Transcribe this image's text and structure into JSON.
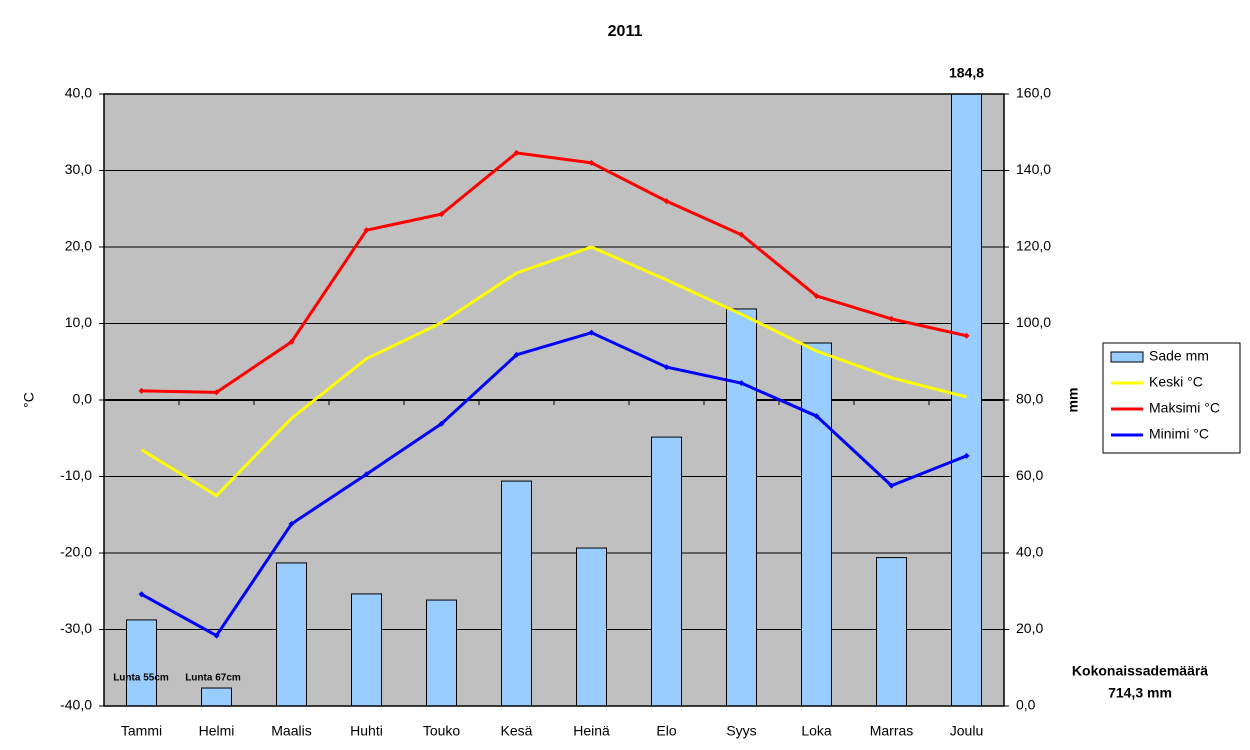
{
  "chart_data": {
    "type": "combo",
    "title": "2011",
    "ylabel": "°C",
    "y2label": "mm",
    "categories": [
      "Tammi",
      "Helmi",
      "Maalis",
      "Huhti",
      "Touko",
      "Kesä",
      "Heinä",
      "Elo",
      "Syys",
      "Loka",
      "Marras",
      "Joulu"
    ],
    "ylim": [
      -40,
      40
    ],
    "yticks": [
      {
        "value": -40,
        "label": "-40,0"
      },
      {
        "value": -30,
        "label": "-30,0"
      },
      {
        "value": -20,
        "label": "-20,0"
      },
      {
        "value": -10,
        "label": "-10,0"
      },
      {
        "value": 0,
        "label": "0,0"
      },
      {
        "value": 10,
        "label": "10,0"
      },
      {
        "value": 20,
        "label": "20,0"
      },
      {
        "value": 30,
        "label": "30,0"
      },
      {
        "value": 40,
        "label": "40,0"
      }
    ],
    "y2lim": [
      0,
      160
    ],
    "y2ticks": [
      {
        "value": 0,
        "label": "0,0"
      },
      {
        "value": 20,
        "label": "20,0"
      },
      {
        "value": 40,
        "label": "40,0"
      },
      {
        "value": 60,
        "label": "60,0"
      },
      {
        "value": 80,
        "label": "80,0"
      },
      {
        "value": 100,
        "label": "100,0"
      },
      {
        "value": 120,
        "label": "120,0"
      },
      {
        "value": 140,
        "label": "140,0"
      },
      {
        "value": 160,
        "label": "160,0"
      }
    ],
    "grid": true,
    "background": "#c0c0c0",
    "series": [
      {
        "name": "Sade mm",
        "type": "bar",
        "axis": "y2",
        "color": "#99ccff",
        "values": [
          22.5,
          4.7,
          37.4,
          29.3,
          27.7,
          58.8,
          41.3,
          70.3,
          103.8,
          94.9,
          38.8,
          184.8
        ],
        "value_labels": [
          null,
          null,
          null,
          null,
          null,
          null,
          null,
          null,
          null,
          null,
          null,
          "184,8"
        ]
      },
      {
        "name": "Keski °C",
        "type": "line",
        "color": "#ffff00",
        "marker": false,
        "values": [
          -6.5,
          -12.5,
          -2.4,
          5.4,
          10.1,
          16.6,
          20.0,
          15.7,
          11.2,
          6.4,
          2.9,
          0.4
        ]
      },
      {
        "name": "Maksimi °C",
        "type": "line",
        "color": "#ff0000",
        "marker": true,
        "values": [
          1.2,
          1.0,
          7.6,
          22.2,
          24.3,
          32.3,
          31.0,
          26.0,
          21.6,
          13.6,
          10.6,
          8.4
        ]
      },
      {
        "name": "Minimi °C",
        "type": "line",
        "color": "#0000ff",
        "marker": true,
        "values": [
          -25.4,
          -30.8,
          -16.2,
          -9.7,
          -3.1,
          5.9,
          8.8,
          4.3,
          2.2,
          -2.1,
          -11.2,
          -7.3
        ]
      }
    ],
    "annotations": [
      "Lunta 55cm",
      "Lunta 67cm",
      "Kokonaissademäärä",
      "714,3 mm"
    ]
  }
}
